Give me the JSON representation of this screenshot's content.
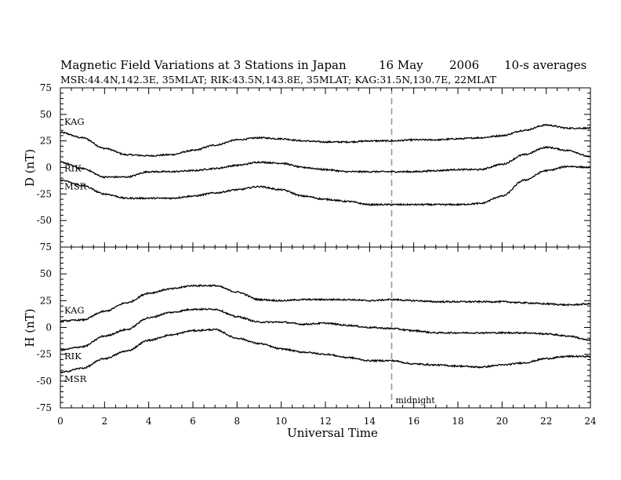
{
  "chart_data": {
    "type": "line",
    "title": {
      "main": "Magnetic Field Variations at 3 Stations in Japan",
      "date_day": "16 May",
      "date_year": "2006",
      "averaging": "10-s averages"
    },
    "subtitle": "MSR:44.4N,142.3E, 35MLAT;   RIK:43.5N,143.8E, 35MLAT;   KAG:31.5N,130.7E, 22MLAT",
    "xlabel": "Universal Time",
    "xlim": [
      0,
      24
    ],
    "xticks": [
      0,
      2,
      4,
      6,
      8,
      10,
      12,
      14,
      16,
      18,
      20,
      22,
      24
    ],
    "x": [
      0,
      1,
      2,
      3,
      4,
      5,
      6,
      7,
      8,
      9,
      10,
      11,
      12,
      13,
      14,
      15,
      16,
      17,
      18,
      19,
      20,
      21,
      22,
      23,
      24
    ],
    "midnight": {
      "x": 15,
      "label": "midnight"
    },
    "panels": [
      {
        "ylabel": "D (nT)",
        "ylim": [
          -75,
          75
        ],
        "yticks": [
          75,
          50,
          25,
          0,
          -25,
          -50,
          -75
        ],
        "series": [
          {
            "name": "KAG",
            "values": [
              33,
              28,
              18,
              12,
              11,
              12,
              16,
              21,
              26,
              28,
              27,
              25,
              24,
              24,
              25,
              25,
              26,
              26,
              27,
              28,
              30,
              35,
              40,
              37,
              37
            ]
          },
          {
            "name": "RIK",
            "values": [
              5,
              -1,
              -9,
              -9,
              -4,
              -4,
              -3,
              -1,
              2,
              5,
              4,
              0,
              -2,
              -4,
              -4,
              -4,
              -4,
              -3,
              -2,
              -2,
              3,
              12,
              19,
              16,
              10
            ]
          },
          {
            "name": "MSR",
            "values": [
              -12,
              -17,
              -25,
              -29,
              -29,
              -29,
              -27,
              -24,
              -21,
              -18,
              -21,
              -27,
              -30,
              -32,
              -35,
              -35,
              -35,
              -35,
              -35,
              -34,
              -27,
              -12,
              -3,
              1,
              0
            ]
          }
        ]
      },
      {
        "ylabel": "H (nT)",
        "ylim": [
          -75,
          75
        ],
        "yticks": [
          75,
          50,
          25,
          0,
          -25,
          -50,
          -75
        ],
        "series": [
          {
            "name": "KAG",
            "values": [
              6,
              7,
              15,
              23,
              32,
              36,
              39,
              39,
              33,
              26,
              25,
              26,
              26,
              26,
              25,
              26,
              25,
              24,
              24,
              24,
              24,
              23,
              22,
              21,
              22
            ]
          },
          {
            "name": "RIK",
            "values": [
              -21,
              -18,
              -8,
              -2,
              9,
              14,
              17,
              17,
              10,
              5,
              5,
              3,
              4,
              2,
              0,
              -1,
              -3,
              -5,
              -5,
              -5,
              -5,
              -5,
              -6,
              -8,
              -12
            ]
          },
          {
            "name": "MSR",
            "values": [
              -42,
              -38,
              -29,
              -22,
              -12,
              -7,
              -3,
              -2,
              -10,
              -15,
              -20,
              -23,
              -25,
              -28,
              -31,
              -31,
              -34,
              -35,
              -36,
              -37,
              -35,
              -33,
              -29,
              -27,
              -27
            ]
          }
        ]
      }
    ]
  }
}
